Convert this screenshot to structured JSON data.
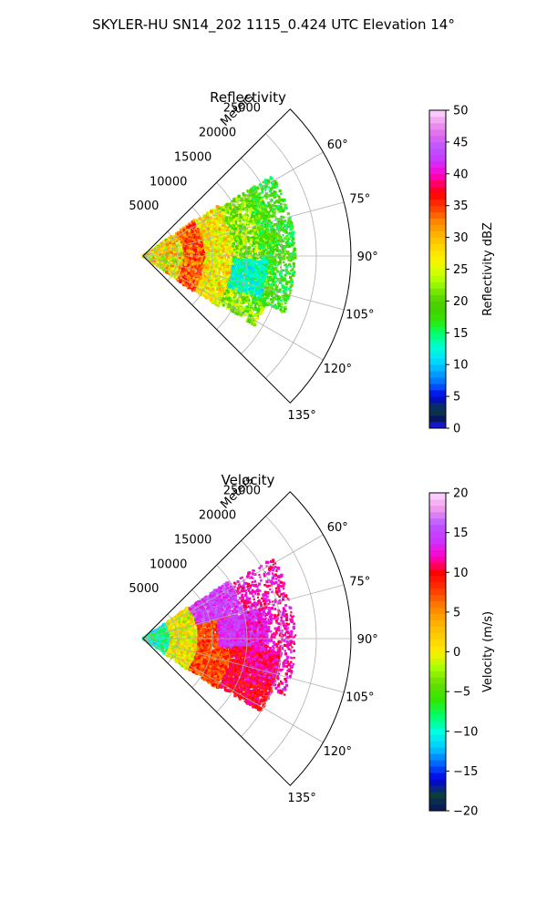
{
  "figure": {
    "suptitle": "SKYLER-HU  SN14_202  1115_0.424 UTC Elevation 14°"
  },
  "chart_data": [
    {
      "type": "heatmap",
      "subtype": "polar-sector-radar",
      "title": "Reflectivity",
      "radial_label": "Meters",
      "radial_ticks": [
        5000,
        10000,
        15000,
        20000,
        25000
      ],
      "radial_tick_labels": [
        "5000",
        "10000",
        "15000",
        "20000",
        "25000"
      ],
      "rlim": [
        0,
        30000
      ],
      "theta_range_deg": [
        45,
        135
      ],
      "theta_direction": "clockwise from north",
      "theta_ticks": [
        60,
        75,
        90,
        105,
        120,
        135
      ],
      "theta_tick_labels": [
        "60°",
        "75°",
        "90°",
        "105°",
        "120°",
        "135°"
      ],
      "grid": true,
      "colorbar": {
        "label": "Reflectivity dBZ",
        "range": [
          0,
          50
        ],
        "ticks": [
          0,
          5,
          10,
          15,
          20,
          25,
          30,
          35,
          40,
          45,
          50
        ],
        "tick_labels": [
          "0",
          "5",
          "10",
          "15",
          "20",
          "25",
          "30",
          "35",
          "40",
          "45",
          "50"
        ],
        "stops": [
          {
            "value": 0,
            "color": "#1a1aff"
          },
          {
            "value": 1.5,
            "color": "#0a1560"
          },
          {
            "value": 3,
            "color": "#0b3d3d"
          },
          {
            "value": 5,
            "color": "#0000e6"
          },
          {
            "value": 7,
            "color": "#0066ff"
          },
          {
            "value": 9,
            "color": "#00aaff"
          },
          {
            "value": 11,
            "color": "#00e6ff"
          },
          {
            "value": 13,
            "color": "#00ffcc"
          },
          {
            "value": 15,
            "color": "#00ff66"
          },
          {
            "value": 17,
            "color": "#33e600"
          },
          {
            "value": 19,
            "color": "#44cc00"
          },
          {
            "value": 21,
            "color": "#66dd00"
          },
          {
            "value": 23,
            "color": "#a6ff00"
          },
          {
            "value": 25,
            "color": "#ddff00"
          },
          {
            "value": 27,
            "color": "#ffee00"
          },
          {
            "value": 29,
            "color": "#ffcc00"
          },
          {
            "value": 31,
            "color": "#ffaa00"
          },
          {
            "value": 33,
            "color": "#ff7700"
          },
          {
            "value": 35,
            "color": "#ff3300"
          },
          {
            "value": 37,
            "color": "#ff0000"
          },
          {
            "value": 38.5,
            "color": "#ff0066"
          },
          {
            "value": 40,
            "color": "#ff00cc"
          },
          {
            "value": 42,
            "color": "#cc33ff"
          },
          {
            "value": 44,
            "color": "#bb55ff"
          },
          {
            "value": 46,
            "color": "#dd66ee"
          },
          {
            "value": 48,
            "color": "#ee99ee"
          },
          {
            "value": 50,
            "color": "#ffd9ff"
          }
        ]
      },
      "field": {
        "seed": 17,
        "points": [
          {
            "r": [
              0,
              6000
            ],
            "theta": [
              55,
              125
            ],
            "v": [
              20,
              34
            ],
            "n": 1400
          },
          {
            "r": [
              6000,
              9000
            ],
            "theta": [
              55,
              125
            ],
            "v": [
              30,
              38
            ],
            "n": 1400
          },
          {
            "r": [
              9000,
              13000
            ],
            "theta": [
              56,
              124
            ],
            "v": [
              22,
              32
            ],
            "n": 1400
          },
          {
            "r": [
              13000,
              19000
            ],
            "theta": [
              58,
              122
            ],
            "v": [
              16,
              27
            ],
            "n": 1700
          },
          {
            "r": [
              17000,
              22000
            ],
            "theta": [
              58,
              112
            ],
            "v": [
              14,
              22
            ],
            "n": 900
          },
          {
            "r": [
              13000,
              18000
            ],
            "theta": [
              92,
              110
            ],
            "v": [
              10,
              16
            ],
            "n": 500
          }
        ]
      }
    },
    {
      "type": "heatmap",
      "subtype": "polar-sector-radar",
      "title": "Velocity",
      "radial_label": "Meters",
      "radial_ticks": [
        5000,
        10000,
        15000,
        20000,
        25000
      ],
      "radial_tick_labels": [
        "5000",
        "10000",
        "15000",
        "20000",
        "25000"
      ],
      "rlim": [
        0,
        30000
      ],
      "theta_range_deg": [
        45,
        135
      ],
      "theta_direction": "clockwise from north",
      "theta_ticks": [
        60,
        75,
        90,
        105,
        120,
        135
      ],
      "theta_tick_labels": [
        "60°",
        "75°",
        "90°",
        "105°",
        "120°",
        "135°"
      ],
      "grid": true,
      "colorbar": {
        "label": "Velocity (m/s)",
        "range": [
          -20,
          20
        ],
        "ticks": [
          -20,
          -15,
          -10,
          -5,
          0,
          5,
          10,
          15,
          20
        ],
        "tick_labels": [
          "−20",
          "−15",
          "−10",
          "−5",
          "0",
          "5",
          "10",
          "15",
          "20"
        ],
        "stops": [
          {
            "value": -20,
            "color": "#0a1560"
          },
          {
            "value": -18,
            "color": "#0b3d3d"
          },
          {
            "value": -16,
            "color": "#0000e6"
          },
          {
            "value": -14,
            "color": "#0066ff"
          },
          {
            "value": -12,
            "color": "#00ccff"
          },
          {
            "value": -10,
            "color": "#00ffdd"
          },
          {
            "value": -8,
            "color": "#00ff66"
          },
          {
            "value": -6,
            "color": "#33e600"
          },
          {
            "value": -4,
            "color": "#66dd00"
          },
          {
            "value": -2,
            "color": "#a6ff00"
          },
          {
            "value": 0,
            "color": "#ffee00"
          },
          {
            "value": 2,
            "color": "#ffcc00"
          },
          {
            "value": 4,
            "color": "#ffaa00"
          },
          {
            "value": 6,
            "color": "#ff7700"
          },
          {
            "value": 8,
            "color": "#ff3300"
          },
          {
            "value": 10,
            "color": "#ff0000"
          },
          {
            "value": 11,
            "color": "#ff0066"
          },
          {
            "value": 12,
            "color": "#ff00cc"
          },
          {
            "value": 14,
            "color": "#cc33ff"
          },
          {
            "value": 16,
            "color": "#bb55ff"
          },
          {
            "value": 18,
            "color": "#ee99ee"
          },
          {
            "value": 20,
            "color": "#ffd9ff"
          }
        ]
      },
      "field": {
        "seed": 29,
        "points": [
          {
            "r": [
              0,
              4000
            ],
            "theta": [
              55,
              125
            ],
            "v": [
              -12,
              -6
            ],
            "n": 600
          },
          {
            "r": [
              4000,
              8000
            ],
            "theta": [
              55,
              125
            ],
            "v": [
              -4,
              4
            ],
            "n": 1200
          },
          {
            "r": [
              8000,
              13000
            ],
            "theta": [
              70,
              124
            ],
            "v": [
              5,
              10
            ],
            "n": 1500
          },
          {
            "r": [
              8000,
              15000
            ],
            "theta": [
              56,
              75
            ],
            "v": [
              12,
              17
            ],
            "n": 900
          },
          {
            "r": [
              11000,
              18000
            ],
            "theta": [
              76,
              96
            ],
            "v": [
              12,
              16
            ],
            "n": 1100
          },
          {
            "r": [
              13000,
              20000
            ],
            "theta": [
              95,
              122
            ],
            "v": [
              8,
              12
            ],
            "n": 1400
          },
          {
            "r": [
              15000,
              22000
            ],
            "theta": [
              58,
              112
            ],
            "v": [
              10,
              14
            ],
            "n": 800
          }
        ]
      }
    }
  ]
}
